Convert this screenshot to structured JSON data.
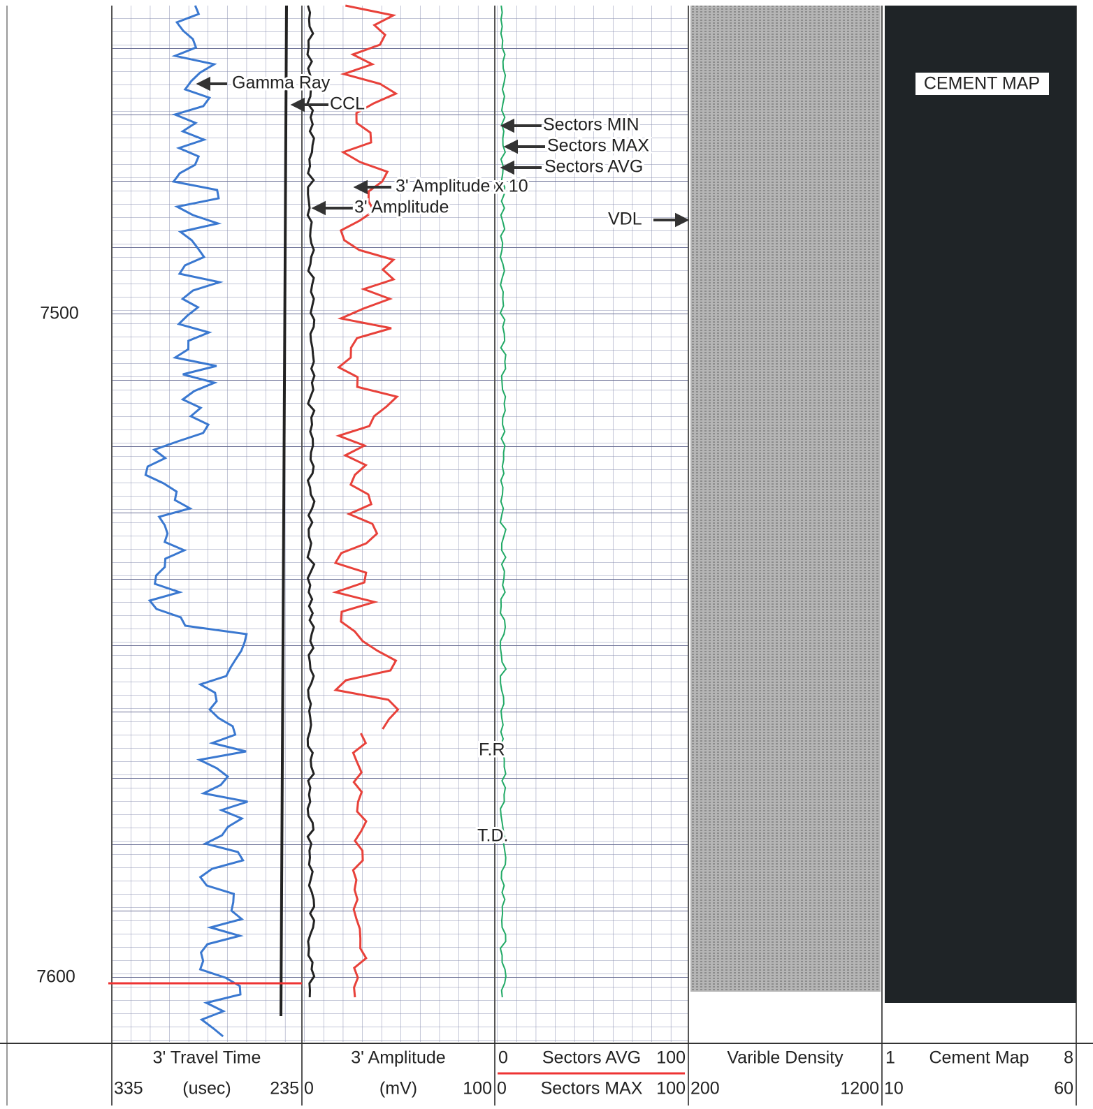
{
  "depth_labels": [
    "7500",
    "7600"
  ],
  "annotations": {
    "gamma_ray": "Gamma Ray",
    "ccl": "CCL",
    "sectors_min": "Sectors MIN",
    "sectors_max": "Sectors MAX",
    "sectors_avg": "Sectors AVG",
    "amp_x10": "3' Amplitude x 10",
    "amp": "3' Amplitude",
    "vdl": "VDL",
    "fr": "F.R",
    "td": "T.D.",
    "cement_map": "CEMENT MAP"
  },
  "tracks": [
    {
      "title": "3' Travel Time",
      "left": "335",
      "unit": "(usec)",
      "right": "235"
    },
    {
      "title": "3' Amplitude",
      "left": "0",
      "unit": "(mV)",
      "right": "100"
    },
    {
      "title_left": "0",
      "title": "Sectors AVG",
      "title_right": "100",
      "left": "0",
      "unit": "Sectors MAX",
      "right": "100"
    },
    {
      "title": "Varible Density",
      "left": "200",
      "right": "1200"
    },
    {
      "title_left": "1",
      "title": "Cement Map",
      "title_right": "8",
      "left": "10",
      "right": "60"
    }
  ]
}
